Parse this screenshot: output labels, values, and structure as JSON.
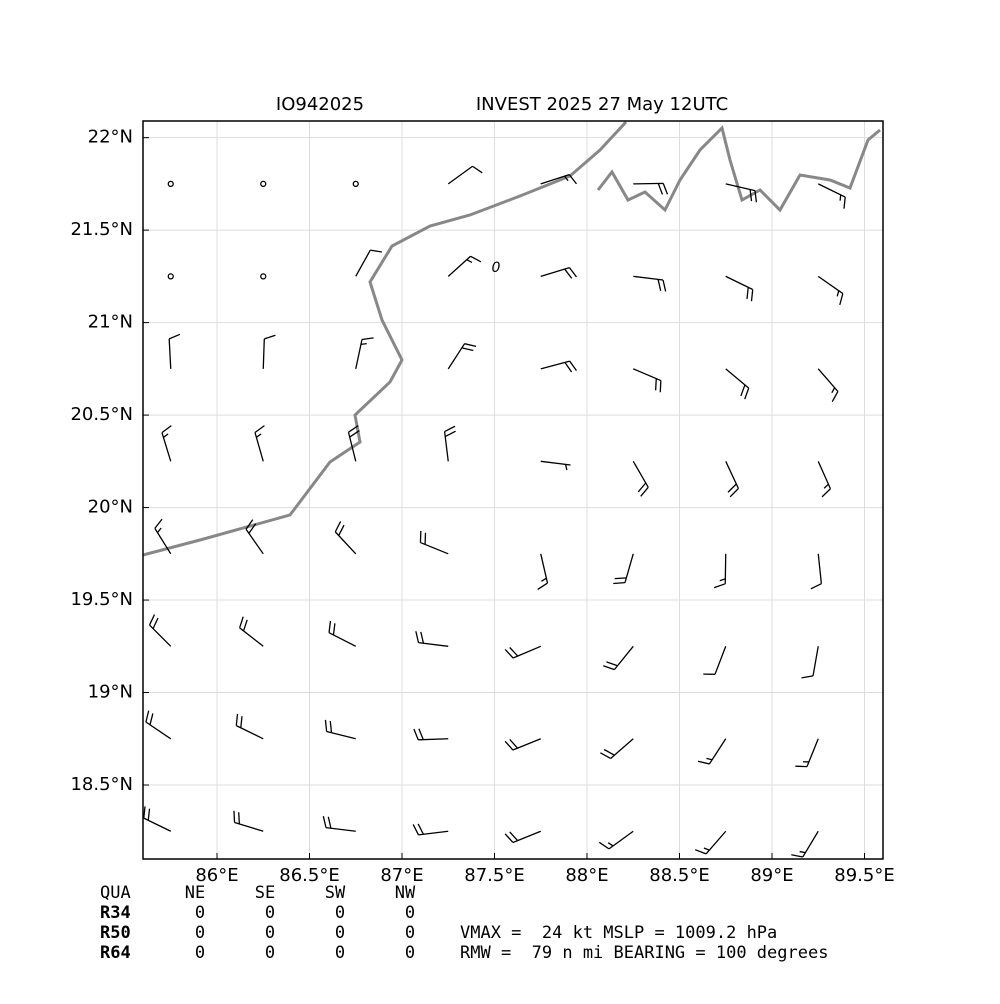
{
  "chart_data": {
    "type": "barb",
    "title_left": "IO942025",
    "title_right": "INVEST 2025 27 May 12UTC",
    "xlim": [
      85.6,
      89.6
    ],
    "ylim": [
      18.1,
      22.09
    ],
    "xticks": [
      {
        "value": 86,
        "label": "86°E"
      },
      {
        "value": 86.5,
        "label": "86.5°E"
      },
      {
        "value": 87,
        "label": "87°E"
      },
      {
        "value": 87.5,
        "label": "87.5°E"
      },
      {
        "value": 88,
        "label": "88°E"
      },
      {
        "value": 88.5,
        "label": "88.5°E"
      },
      {
        "value": 89,
        "label": "89°E"
      },
      {
        "value": 89.5,
        "label": "89.5°E"
      }
    ],
    "yticks": [
      {
        "value": 18.5,
        "label": "18.5°N"
      },
      {
        "value": 19,
        "label": "19°N"
      },
      {
        "value": 19.5,
        "label": "19.5°N"
      },
      {
        "value": 20,
        "label": "20°N"
      },
      {
        "value": 20.5,
        "label": "20.5°N"
      },
      {
        "value": 21,
        "label": "21°N"
      },
      {
        "value": 21.5,
        "label": "21.5°N"
      },
      {
        "value": 22,
        "label": "22°N"
      }
    ],
    "grid": true,
    "color": "#000000",
    "contour_label": "0",
    "barbs": {
      "lon": [
        85.75,
        86.25,
        86.75,
        87.25,
        87.75,
        88.25,
        88.75,
        89.25,
        85.75,
        86.25,
        86.75,
        87.25,
        87.75,
        88.25,
        88.75,
        89.25,
        85.75,
        86.25,
        86.75,
        87.25,
        87.75,
        88.25,
        88.75,
        89.25,
        85.75,
        86.25,
        86.75,
        87.25,
        87.75,
        88.25,
        88.75,
        89.25,
        85.75,
        86.25,
        86.75,
        87.25,
        87.75,
        88.25,
        88.75,
        89.25,
        85.75,
        86.25,
        86.75,
        87.25,
        87.75,
        88.25,
        88.75,
        89.25,
        85.75,
        86.25,
        86.75,
        87.25,
        87.75,
        88.25,
        88.75,
        89.25,
        85.75,
        86.25,
        86.75,
        87.25,
        87.75,
        88.25,
        88.75,
        89.25
      ],
      "lat": [
        21.75,
        21.75,
        21.75,
        21.75,
        21.75,
        21.75,
        21.75,
        21.75,
        21.25,
        21.25,
        21.25,
        21.25,
        21.25,
        21.25,
        21.25,
        21.25,
        20.75,
        20.75,
        20.75,
        20.75,
        20.75,
        20.75,
        20.75,
        20.75,
        20.25,
        20.25,
        20.25,
        20.25,
        20.25,
        20.25,
        20.25,
        20.25,
        19.75,
        19.75,
        19.75,
        19.75,
        19.75,
        19.75,
        19.75,
        19.75,
        19.25,
        19.25,
        19.25,
        19.25,
        19.25,
        19.25,
        19.25,
        19.25,
        18.75,
        18.75,
        18.75,
        18.75,
        18.75,
        18.75,
        18.75,
        18.75,
        18.25,
        18.25,
        18.25,
        18.25,
        18.25,
        18.25,
        18.25,
        18.25
      ],
      "dir": [
        19,
        28,
        39,
        54,
        72,
        89,
        103,
        116,
        9,
        17,
        29,
        48,
        73,
        97,
        116,
        125,
        357,
        2,
        12,
        33,
        75,
        113,
        130,
        139,
        343,
        344,
        346,
        353,
        97,
        150,
        155,
        156,
        328,
        325,
        317,
        292,
        167,
        196,
        181,
        174,
        315,
        308,
        297,
        277,
        247,
        219,
        201,
        190,
        304,
        296,
        284,
        268,
        248,
        229,
        213,
        202,
        296,
        287,
        277,
        263,
        248,
        234,
        221,
        211
      ],
      "speed": [
        0,
        0,
        0,
        12,
        15,
        18,
        18,
        16,
        0,
        0,
        8,
        14,
        18,
        20,
        18,
        16,
        10,
        12,
        14,
        18,
        20,
        20,
        18,
        16,
        14,
        16,
        18,
        18,
        6,
        20,
        18,
        16,
        16,
        18,
        20,
        20,
        14,
        20,
        16,
        12,
        18,
        20,
        20,
        22,
        20,
        18,
        10,
        8,
        18,
        20,
        22,
        22,
        20,
        18,
        14,
        14,
        18,
        20,
        20,
        20,
        18,
        16,
        14,
        14
      ]
    }
  },
  "quadrant_table": {
    "header": [
      "QUA",
      "NE",
      "SE",
      "SW",
      "NW"
    ],
    "rows": [
      [
        "R34",
        "0",
        "0",
        "0",
        "0"
      ],
      [
        "R50",
        "0",
        "0",
        "0",
        "0"
      ],
      [
        "R64",
        "0",
        "0",
        "0",
        "0"
      ]
    ]
  },
  "info_lines": [
    "VMAX =  24 kt MSLP = 1009.2 hPa",
    "RMW =  79 n mi BEARING = 100 degrees"
  ]
}
